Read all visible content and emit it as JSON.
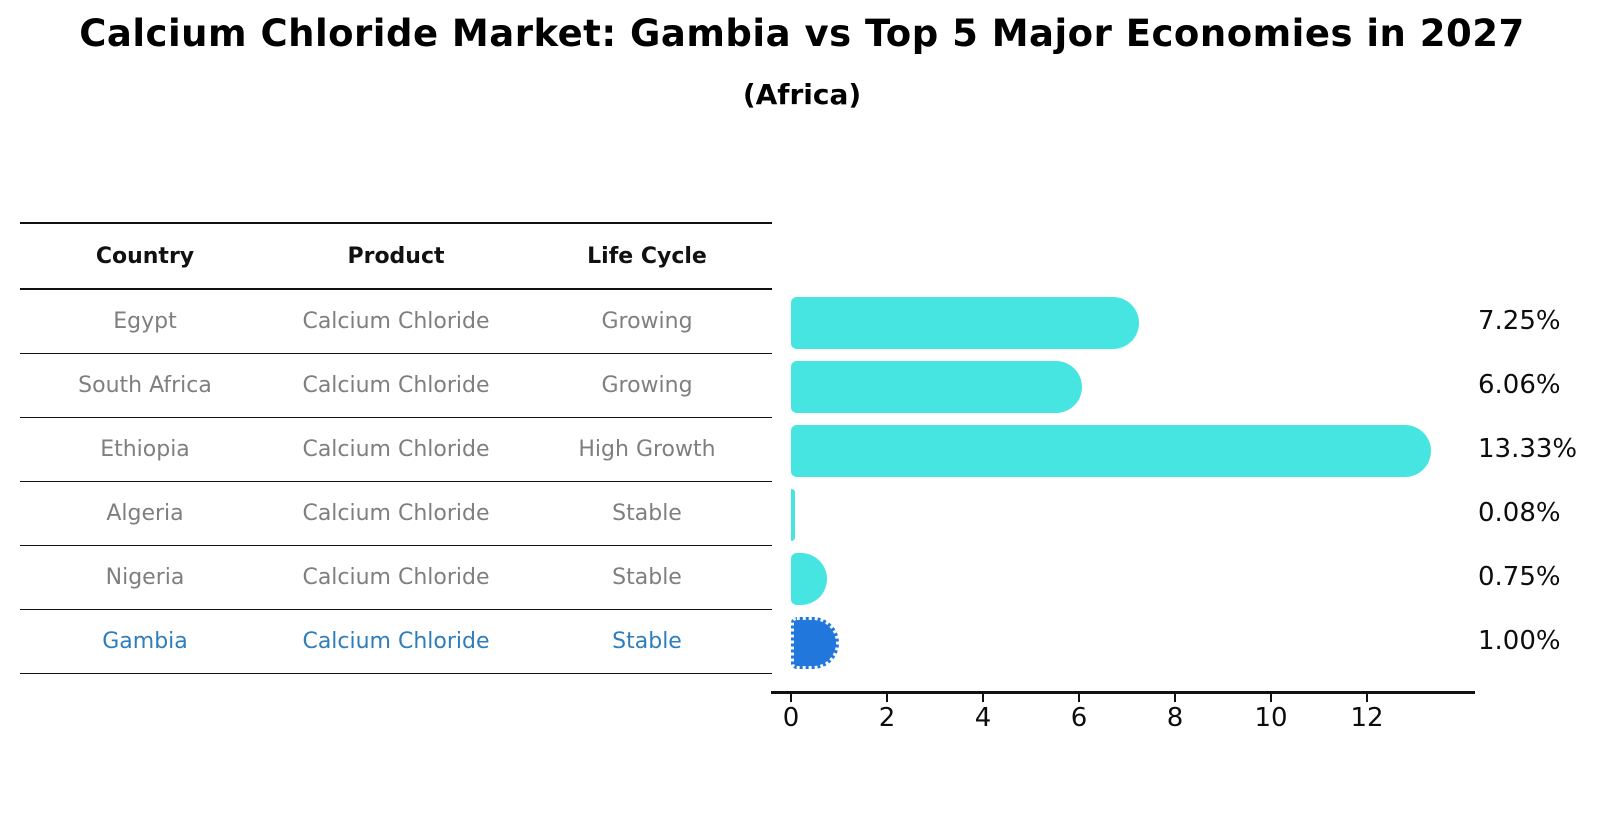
{
  "title": "Calcium Chloride Market: Gambia vs Top 5 Major Economies in 2027",
  "subtitle": "(Africa)",
  "table": {
    "headers": [
      "Country",
      "Product",
      "Life Cycle"
    ],
    "rows": [
      {
        "country": "Egypt",
        "product": "Calcium Chloride",
        "life_cycle": "Growing",
        "highlight": false
      },
      {
        "country": "South Africa",
        "product": "Calcium Chloride",
        "life_cycle": "Growing",
        "highlight": false
      },
      {
        "country": "Ethiopia",
        "product": "Calcium Chloride",
        "life_cycle": "High Growth",
        "highlight": false
      },
      {
        "country": "Algeria",
        "product": "Calcium Chloride",
        "life_cycle": "Stable",
        "highlight": false
      },
      {
        "country": "Nigeria",
        "product": "Calcium Chloride",
        "life_cycle": "Stable",
        "highlight": false
      },
      {
        "country": "Gambia",
        "product": "Calcium Chloride",
        "life_cycle": "Stable",
        "highlight": true
      }
    ]
  },
  "chart_data": {
    "type": "bar",
    "orientation": "horizontal",
    "title": "Calcium Chloride Market: Gambia vs Top 5 Major Economies in 2027",
    "subtitle": "(Africa)",
    "categories": [
      "Egypt",
      "South Africa",
      "Ethiopia",
      "Algeria",
      "Nigeria",
      "Gambia"
    ],
    "values": [
      7.25,
      6.06,
      13.33,
      0.08,
      0.75,
      1.0
    ],
    "value_labels": [
      "7.25%",
      "6.06%",
      "13.33%",
      "0.08%",
      "0.75%",
      "1.00%"
    ],
    "highlight_index": 5,
    "x_ticks": [
      0,
      2,
      4,
      6,
      8,
      10,
      12
    ],
    "xlim": [
      0,
      14.25
    ],
    "grid": false,
    "legend": false
  },
  "colors": {
    "bar": "#47e5e1",
    "highlight_bar": "#2277dd",
    "highlight_text": "#2e7ebc",
    "row_text": "#7f7f7f",
    "axis": "#111111"
  }
}
